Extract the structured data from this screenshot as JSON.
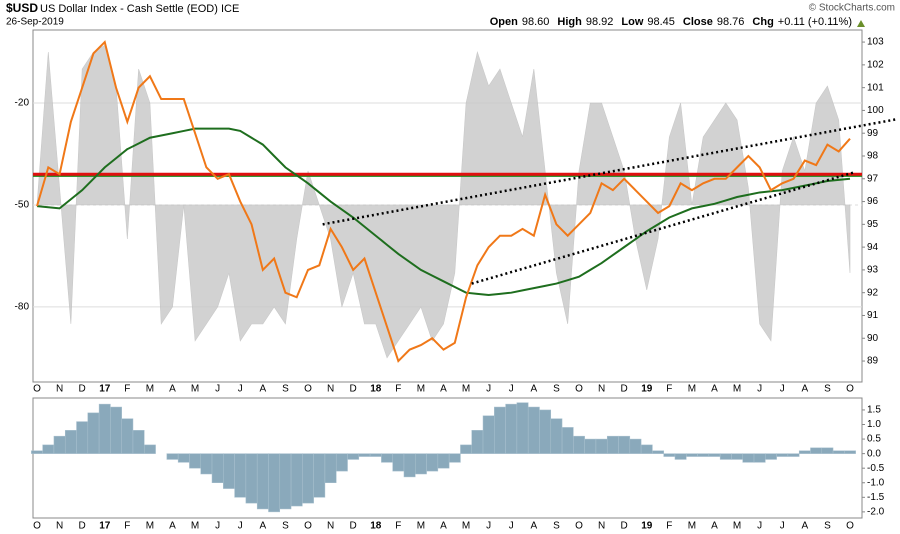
{
  "header": {
    "symbol": "$USD",
    "name": "US Dollar Index - Cash Settle (EOD) ICE",
    "date": "26-Sep-2019",
    "credit": "© StockCharts.com",
    "quote": [
      {
        "label": "Open",
        "value": "98.60"
      },
      {
        "label": "High",
        "value": "98.92"
      },
      {
        "label": "Low",
        "value": "98.45"
      },
      {
        "label": "Close",
        "value": "98.76"
      },
      {
        "label": "Chg",
        "value": "+0.11 (+0.11%)"
      }
    ]
  },
  "chart_data": [
    {
      "type": "line",
      "categories": [
        "O",
        null,
        "N",
        null,
        "D",
        null,
        "17",
        null,
        "F",
        null,
        "M",
        null,
        "A",
        null,
        "M",
        null,
        "J",
        null,
        "J",
        null,
        "A",
        null,
        "S",
        null,
        "O",
        null,
        "N",
        null,
        "D",
        null,
        "18",
        null,
        "F",
        null,
        "M",
        null,
        "A",
        null,
        "M",
        null,
        "J",
        null,
        "J",
        null,
        "A",
        null,
        "S",
        null,
        "O",
        null,
        "N",
        null,
        "D",
        null,
        "19",
        null,
        "F",
        null,
        "M",
        null,
        "A",
        null,
        "M",
        null,
        "J",
        null,
        "J",
        null,
        "A",
        null,
        "S",
        null,
        "O"
      ],
      "series": [
        {
          "color": "#c8c8c8",
          "axis": "y",
          "style": "area",
          "values": [
            -50,
            -5,
            -45,
            -85,
            -10,
            -5,
            -3,
            -15,
            -60,
            -10,
            -20,
            -85,
            -80,
            -50,
            -90,
            -85,
            -80,
            -70,
            -90,
            -85,
            -85,
            -80,
            -85,
            -60,
            -40,
            -50,
            -60,
            -80,
            -70,
            -85,
            -85,
            -95,
            -90,
            -85,
            -80,
            -90,
            -85,
            -70,
            -20,
            -5,
            -15,
            -10,
            -20,
            -30,
            -10,
            -40,
            -70,
            -85,
            -40,
            -20,
            -20,
            -30,
            -40,
            -60,
            -75,
            -60,
            -30,
            -20,
            -50,
            -30,
            -25,
            -20,
            -25,
            -45,
            -85,
            -90,
            -40,
            -30,
            -40,
            -20,
            -15,
            -25,
            -70
          ]
        },
        {
          "color": "#1e6e1e",
          "axis": "y2",
          "style": "line",
          "values": [
            95.8,
            95.75,
            95.7,
            96.1,
            96.5,
            97,
            97.5,
            97.9,
            98.3,
            98.55,
            98.8,
            98.9,
            99.0,
            99.1,
            99.2,
            99.2,
            99.2,
            99.2,
            99.1,
            98.8,
            98.5,
            98,
            97.5,
            97.15,
            96.8,
            96.4,
            96,
            95.65,
            95.3,
            94.9,
            94.5,
            94.1,
            93.7,
            93.35,
            93,
            92.75,
            92.5,
            92.25,
            92,
            91.95,
            91.9,
            91.95,
            92,
            92.1,
            92.2,
            92.3,
            92.4,
            92.55,
            92.7,
            93,
            93.3,
            93.65,
            94,
            94.35,
            94.7,
            95,
            95.3,
            95.5,
            95.7,
            95.8,
            95.9,
            96.05,
            96.2,
            96.3,
            96.4,
            96.45,
            96.5,
            96.6,
            96.7,
            96.8,
            96.9,
            96.95,
            97.0
          ]
        },
        {
          "color": "#f07818",
          "axis": "y2",
          "style": "line",
          "values": [
            95.8,
            97.5,
            97.2,
            99.5,
            101,
            102.5,
            103,
            101,
            99.5,
            101,
            101.5,
            100.5,
            100.5,
            100.5,
            99,
            97.5,
            97,
            97.2,
            96,
            95,
            93,
            93.5,
            92,
            91.8,
            93,
            93.2,
            94.8,
            94,
            93,
            93.5,
            92,
            90.5,
            89,
            89.5,
            89.7,
            90,
            89.5,
            89.8,
            91.8,
            93.2,
            94,
            94.5,
            94.5,
            94.8,
            94.5,
            96.3,
            95,
            94.5,
            95,
            95.5,
            96.8,
            96.5,
            97,
            96.5,
            96,
            95.5,
            95.8,
            96.8,
            96.5,
            96.8,
            97,
            97,
            97.5,
            98,
            97.5,
            96.5,
            96.8,
            97,
            97.8,
            97.6,
            98.5,
            98.2,
            98.76
          ]
        }
      ],
      "hlines": [
        {
          "value": 97.15,
          "color": "#1a8a1a"
        },
        {
          "value": 97.2,
          "color": "#e01010"
        }
      ],
      "trendlines": [
        {
          "x0": 25.3,
          "y0": 95.0,
          "x1": 76,
          "y1": 99.6,
          "color": "#000"
        },
        {
          "x0": 38.5,
          "y0": 92.4,
          "x1": 72.5,
          "y1": 97.3,
          "color": "#000"
        }
      ],
      "ylim": [
        -102.1,
        1.5
      ],
      "yticks": [
        -20,
        -50,
        -80
      ],
      "y2lim": [
        88.08,
        103.53
      ],
      "y2ticks": [
        89,
        90,
        91,
        92,
        93,
        94,
        95,
        96,
        97,
        98,
        99,
        100,
        101,
        102,
        103
      ],
      "grid": true
    },
    {
      "type": "bar",
      "categories": [
        "O",
        null,
        "N",
        null,
        "D",
        null,
        "17",
        null,
        "F",
        null,
        "M",
        null,
        "A",
        null,
        "M",
        null,
        "J",
        null,
        "J",
        null,
        "A",
        null,
        "S",
        null,
        "O",
        null,
        "N",
        null,
        "D",
        null,
        "18",
        null,
        "F",
        null,
        "M",
        null,
        "A",
        null,
        "M",
        null,
        "J",
        null,
        "J",
        null,
        "A",
        null,
        "S",
        null,
        "O",
        null,
        "N",
        null,
        "D",
        null,
        "19",
        null,
        "F",
        null,
        "M",
        null,
        "A",
        null,
        "M",
        null,
        "J",
        null,
        "J",
        null,
        "A",
        null,
        "S",
        null,
        "O"
      ],
      "values": [
        0.1,
        0.3,
        0.6,
        0.8,
        1.1,
        1.4,
        1.7,
        1.6,
        1.2,
        0.8,
        0.3,
        0,
        -0.2,
        -0.3,
        -0.5,
        -0.7,
        -1.0,
        -1.2,
        -1.5,
        -1.7,
        -1.9,
        -2.0,
        -1.9,
        -1.8,
        -1.7,
        -1.5,
        -1.0,
        -0.6,
        -0.2,
        -0.1,
        -0.1,
        -0.3,
        -0.6,
        -0.8,
        -0.7,
        -0.6,
        -0.5,
        -0.3,
        0.3,
        0.8,
        1.3,
        1.6,
        1.7,
        1.75,
        1.6,
        1.5,
        1.2,
        0.9,
        0.6,
        0.5,
        0.5,
        0.6,
        0.6,
        0.5,
        0.3,
        0.1,
        -0.1,
        -0.2,
        -0.1,
        -0.1,
        -0.1,
        -0.2,
        -0.2,
        -0.3,
        -0.3,
        -0.2,
        -0.1,
        -0.1,
        0.1,
        0.2,
        0.2,
        0.1,
        0.1
      ],
      "color": "#8aa9bb",
      "ylim": [
        -2.21,
        1.91
      ],
      "yticks": [
        1.5,
        {
          "value": 1,
          "label": "1.0"
        },
        0.5,
        {
          "value": 0,
          "label": "0.0"
        },
        -0.5,
        {
          "value": -1,
          "label": "-1.0"
        },
        -1.5,
        {
          "value": -2,
          "label": "-2.0"
        }
      ]
    }
  ]
}
